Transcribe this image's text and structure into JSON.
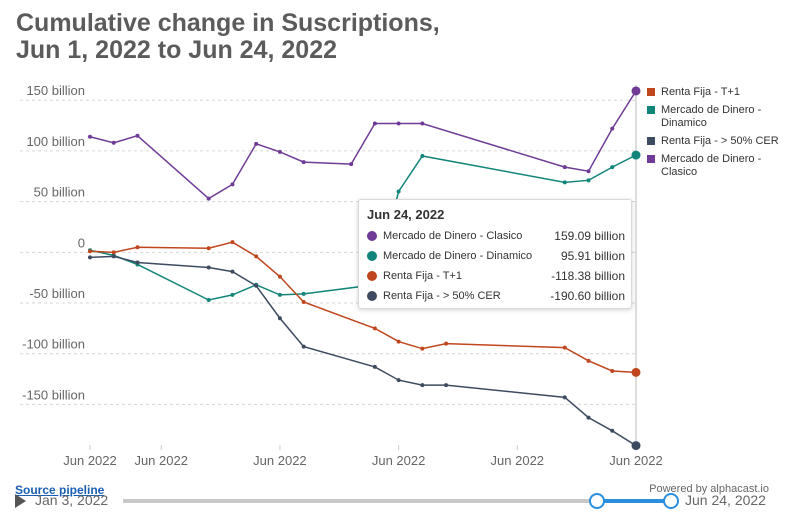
{
  "title": "Cumulative change in Suscriptions, Jun 1, 2022 to Jun 24, 2022",
  "chart_data": {
    "type": "line",
    "ylim": [
      -190,
      165
    ],
    "y_ticks": [
      150,
      100,
      50,
      0,
      -50,
      -100,
      -150
    ],
    "y_tick_labels": [
      "150 billion",
      "100 billion",
      "50 billion",
      "0",
      "-50 billion",
      "-100 billion",
      "-150 billion"
    ],
    "x_tick_labels": [
      "Jun 2022",
      "Jun 2022",
      "Jun 2022",
      "Jun 2022",
      "Jun 2022",
      "Jun 2022"
    ],
    "x_tick_days": [
      1,
      4,
      9,
      14,
      19,
      24
    ],
    "x_days": [
      1,
      2,
      3,
      6,
      7,
      8,
      9,
      13,
      14,
      15,
      16,
      21,
      22,
      23,
      24
    ],
    "series": [
      {
        "name": "Mercado de Dinero - Clasico",
        "color": "#6f3b96",
        "x_days": [
          1,
          2,
          3,
          6,
          7,
          8,
          9,
          10,
          12,
          13,
          14,
          15,
          21,
          22,
          23,
          24
        ],
        "values": [
          114,
          108,
          115,
          53,
          67,
          107,
          99,
          89,
          87,
          127,
          127,
          127,
          84,
          80,
          122,
          159.09
        ]
      },
      {
        "name": "Mercado de Dinero - Dinamico",
        "color": "#12857a",
        "x_days": [
          1,
          2,
          3,
          6,
          7,
          8,
          9,
          10,
          13,
          14,
          15,
          21,
          22,
          23,
          24
        ],
        "values": [
          2,
          -3,
          -12,
          -47,
          -42,
          -32,
          -42,
          -41,
          -32,
          60,
          95,
          69,
          71,
          84,
          95.91
        ]
      },
      {
        "name": "Renta Fija - T+1",
        "color": "#c0461e",
        "x_days": [
          1,
          2,
          3,
          6,
          7,
          8,
          9,
          10,
          13,
          14,
          15,
          16,
          21,
          22,
          23,
          24
        ],
        "values": [
          1,
          0,
          5,
          4,
          10,
          -4,
          -24,
          -49,
          -75,
          -88,
          -95,
          -90,
          -94,
          -107,
          -117,
          -118.38
        ]
      },
      {
        "name": "Renta Fija - > 50% CER",
        "color": "#3d4b60",
        "x_days": [
          1,
          2,
          3,
          6,
          7,
          8,
          9,
          10,
          13,
          14,
          15,
          16,
          21,
          22,
          23,
          24
        ],
        "values": [
          -5,
          -4,
          -10,
          -15,
          -19,
          -33,
          -65,
          -93,
          -113,
          -126,
          -131,
          -131,
          -143,
          -163,
          -176,
          -190.6
        ]
      }
    ],
    "legend": [
      {
        "label": "Renta Fija - T+1",
        "color": "#c0461e"
      },
      {
        "label": "Mercado de Dinero - Dinamico",
        "color": "#12857a"
      },
      {
        "label": "Renta Fija - > 50% CER",
        "color": "#3d4b60"
      },
      {
        "label": "Mercado de Dinero - Clasico",
        "color": "#6f3b96"
      }
    ]
  },
  "tooltip": {
    "date": "Jun 24, 2022",
    "rows": [
      {
        "name": "Mercado de Dinero - Clasico",
        "value": "159.09 billion",
        "color": "#6f3b96"
      },
      {
        "name": "Mercado de Dinero - Dinamico",
        "value": "95.91 billion",
        "color": "#12857a"
      },
      {
        "name": "Renta Fija - T+1",
        "value": "-118.38 billion",
        "color": "#c0461e"
      },
      {
        "name": "Renta Fija - > 50% CER",
        "value": "-190.60 billion",
        "color": "#3d4b60"
      }
    ]
  },
  "footer": {
    "source_link": "Source pipeline",
    "powered_by": "Powered by alphacast.io",
    "timeline_start": "Jan 3, 2022",
    "timeline_end": "Jun 24, 2022"
  }
}
